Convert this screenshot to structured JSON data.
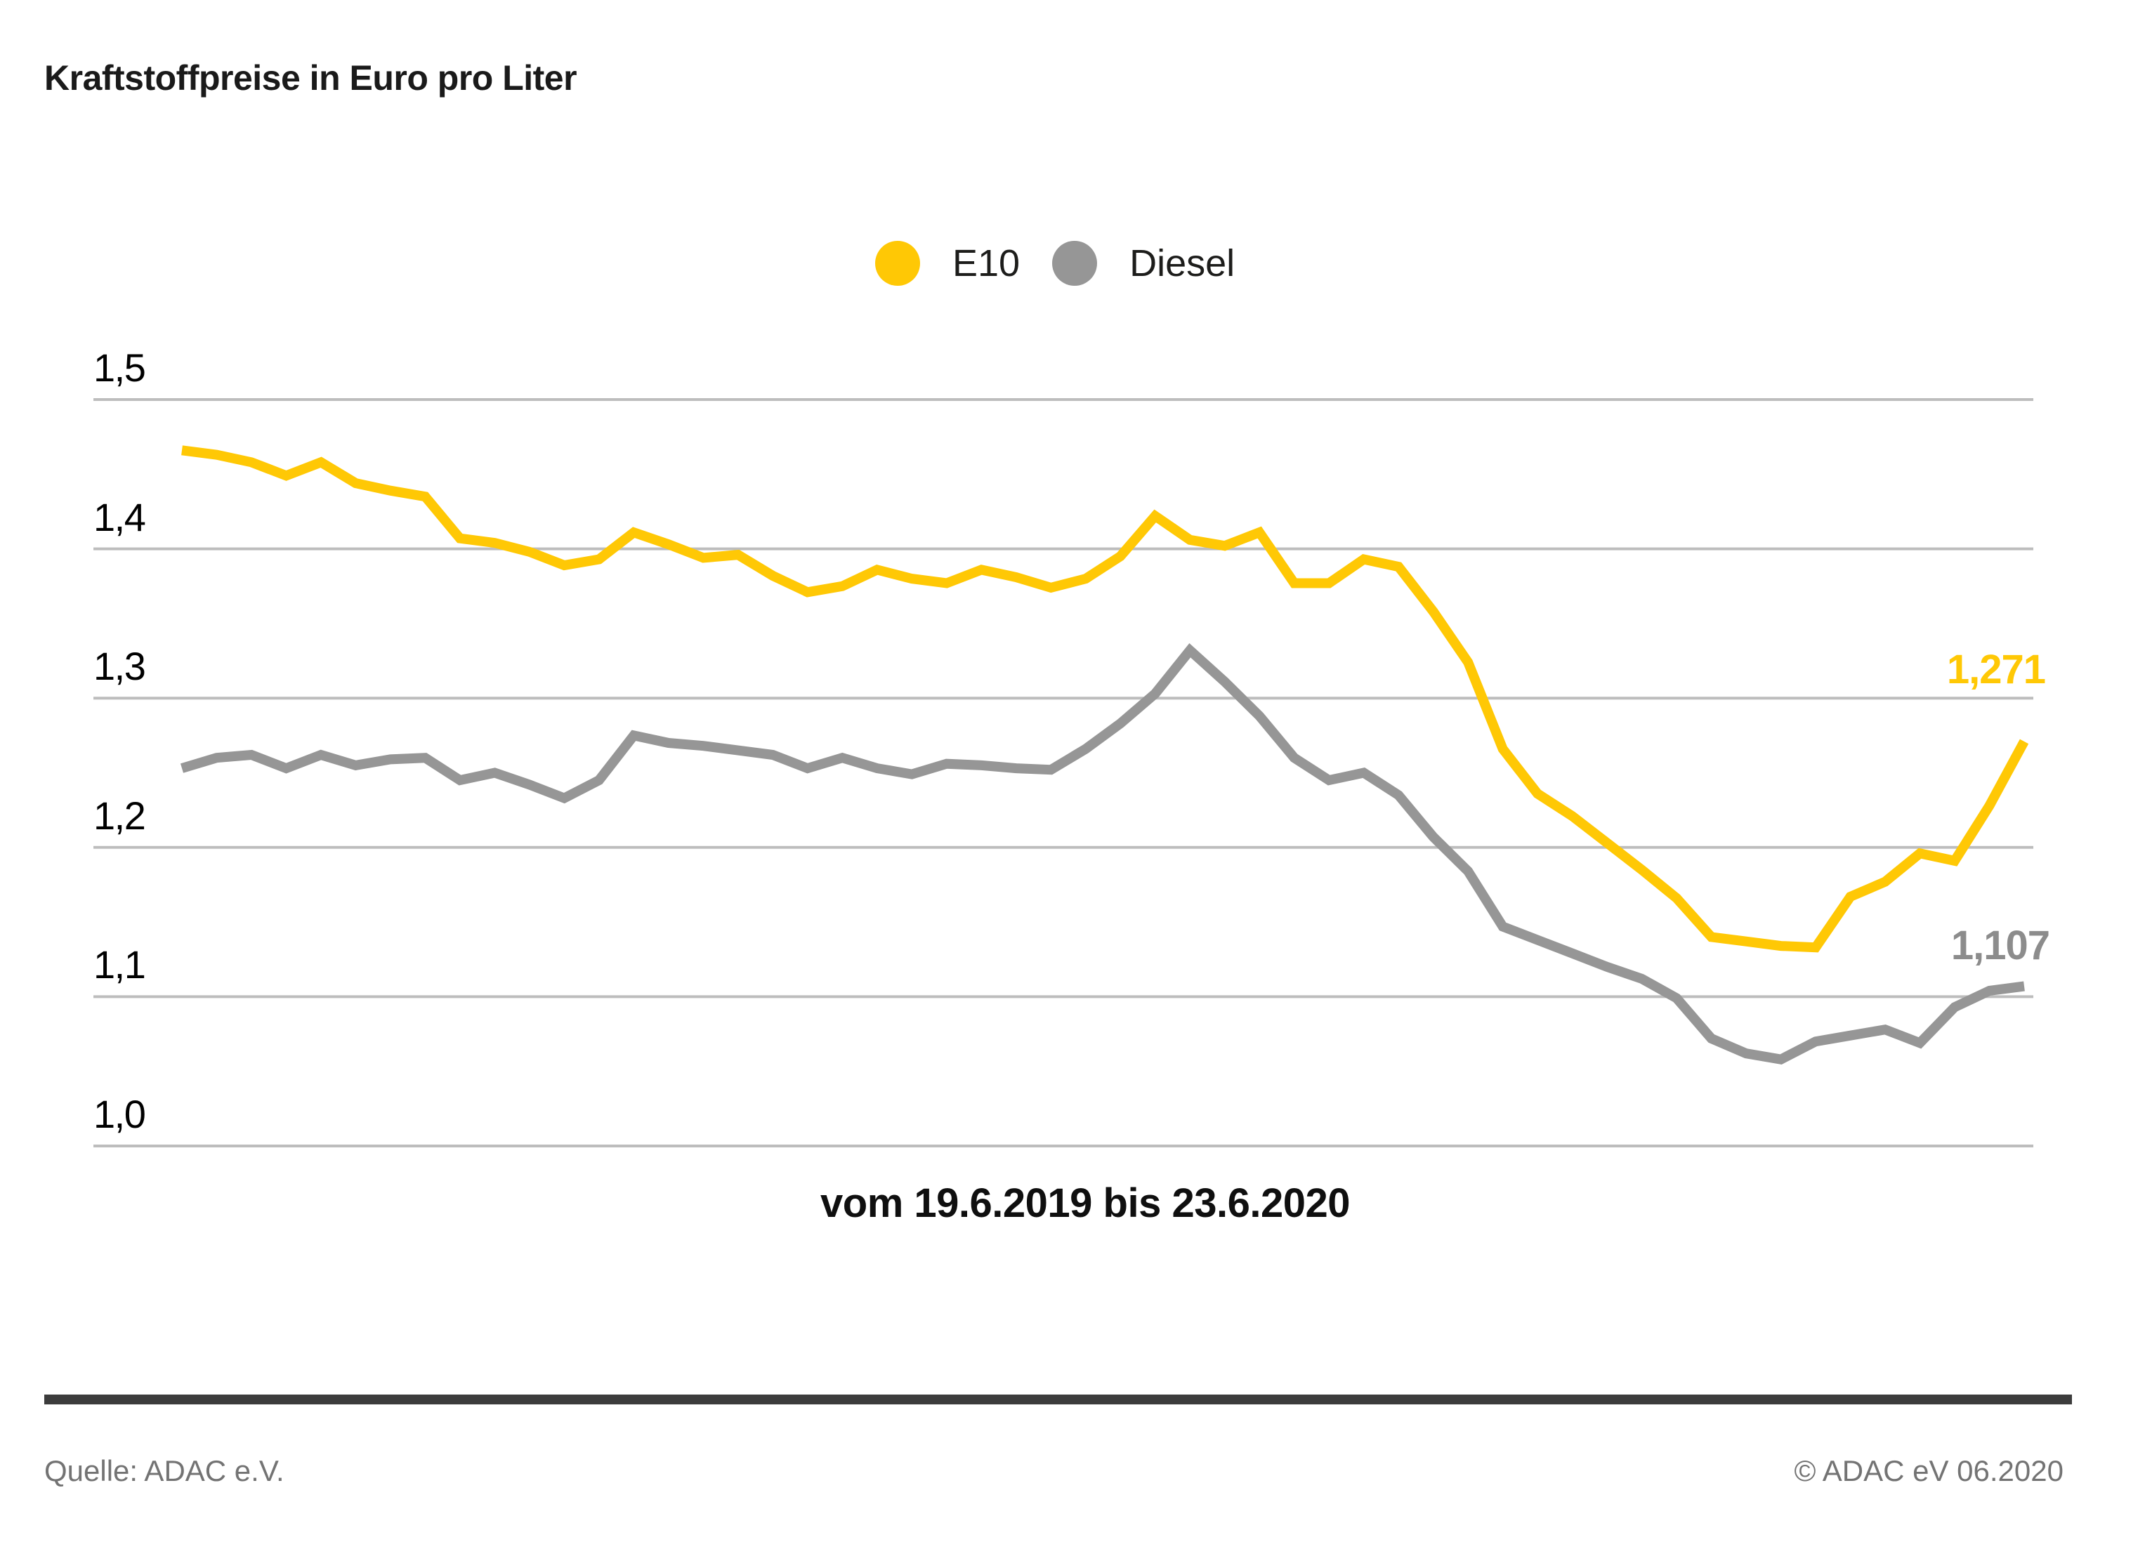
{
  "title": "Kraftstoffpreise in Euro pro Liter",
  "colors": {
    "e10_yellow": "#FFC805",
    "diesel_gray": "#969696",
    "grid": "#BDBDBD",
    "footer_rule": "#3C3C3C",
    "value_label_diesel": "#8C8C8C"
  },
  "legend": {
    "position": "top-center",
    "items": [
      {
        "label": "E10",
        "color": "#FFC805"
      },
      {
        "label": "Diesel",
        "color": "#969696"
      }
    ]
  },
  "chart_data": {
    "type": "line",
    "title": "Kraftstoffpreise in Euro pro Liter",
    "xlabel": "vom 19.6.2019 bis 23.6.2020",
    "ylabel": "Euro pro Liter",
    "ylim": [
      1.0,
      1.5
    ],
    "grid": "horizontal-only",
    "legend_position": "top-center",
    "x_start": "19.6.2019",
    "x_end": "23.6.2020",
    "x_interval": "weekly",
    "y_ticks": [
      {
        "label": "1,5",
        "value": 1.5
      },
      {
        "label": "1,4",
        "value": 1.4
      },
      {
        "label": "1,3",
        "value": 1.3
      },
      {
        "label": "1,2",
        "value": 1.2
      },
      {
        "label": "1,1",
        "value": 1.1
      },
      {
        "label": "1,0",
        "value": 1.0
      }
    ],
    "series": [
      {
        "name": "E10",
        "color": "#FFC805",
        "end_label": "1,271",
        "end_value": 1.271,
        "values": [
          1.466,
          1.463,
          1.458,
          1.449,
          1.458,
          1.444,
          1.439,
          1.435,
          1.407,
          1.404,
          1.398,
          1.389,
          1.393,
          1.411,
          1.403,
          1.394,
          1.396,
          1.382,
          1.371,
          1.375,
          1.386,
          1.38,
          1.377,
          1.386,
          1.381,
          1.374,
          1.38,
          1.395,
          1.422,
          1.406,
          1.402,
          1.411,
          1.377,
          1.377,
          1.393,
          1.388,
          1.358,
          1.324,
          1.266,
          1.236,
          1.221,
          1.203,
          1.185,
          1.166,
          1.14,
          1.137,
          1.134,
          1.133,
          1.167,
          1.177,
          1.196,
          1.191,
          1.228,
          1.271
        ]
      },
      {
        "name": "Diesel",
        "color": "#969696",
        "end_label": "1,107",
        "end_value": 1.107,
        "values": [
          1.253,
          1.26,
          1.262,
          1.253,
          1.262,
          1.255,
          1.259,
          1.26,
          1.245,
          1.25,
          1.242,
          1.233,
          1.245,
          1.275,
          1.27,
          1.268,
          1.265,
          1.262,
          1.253,
          1.26,
          1.253,
          1.249,
          1.256,
          1.255,
          1.253,
          1.252,
          1.266,
          1.283,
          1.303,
          1.332,
          1.311,
          1.288,
          1.26,
          1.245,
          1.25,
          1.235,
          1.207,
          1.184,
          1.147,
          1.138,
          1.129,
          1.12,
          1.112,
          1.099,
          1.072,
          1.062,
          1.058,
          1.07,
          1.074,
          1.078,
          1.069,
          1.093,
          1.104,
          1.107
        ]
      }
    ]
  },
  "x_axis_label": "vom 19.6.2019 bis 23.6.2020",
  "footer": {
    "source": "Quelle: ADAC e.V.",
    "copyright": "© ADAC eV 06.2020"
  }
}
